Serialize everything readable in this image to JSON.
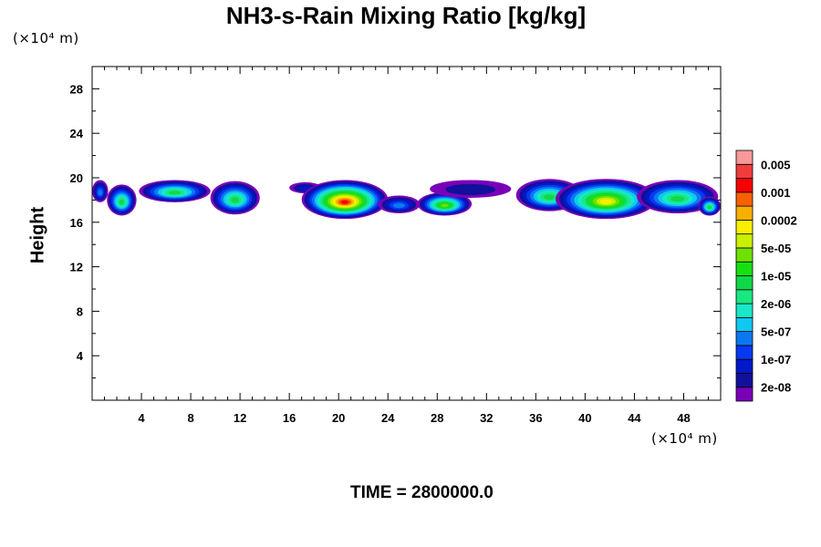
{
  "chart_data": {
    "type": "heatmap",
    "title": "NH3-s-Rain Mixing Ratio [kg/kg]",
    "ylabel": "Height",
    "xlabel": "",
    "x_unit": "(×10⁴ m)",
    "y_unit": "(×10⁴ m)",
    "footer": "TIME = 2800000.0",
    "xlim": [
      0,
      51
    ],
    "ylim": [
      0,
      30
    ],
    "x_ticks": [
      4,
      8,
      12,
      16,
      20,
      24,
      28,
      32,
      36,
      40,
      44,
      48
    ],
    "x_tick_labels": [
      "4",
      "8",
      "12",
      "16",
      "20",
      "24",
      "28",
      "32",
      "36",
      "40",
      "44",
      "48"
    ],
    "y_ticks": [
      4,
      8,
      12,
      16,
      20,
      24,
      28
    ],
    "y_tick_labels": [
      "4",
      "8",
      "12",
      "16",
      "20",
      "24",
      "28"
    ],
    "grid": false,
    "legend_position": "right",
    "colorbar": {
      "colors": [
        "#7a00b8",
        "#10109a",
        "#0018c8",
        "#0838f0",
        "#0c78f0",
        "#10c8f0",
        "#18e8c8",
        "#18e880",
        "#10d848",
        "#18e010",
        "#70e000",
        "#c8f000",
        "#f8f000",
        "#f8b000",
        "#f86000",
        "#f80000",
        "#f03c3c",
        "#f89898"
      ],
      "labels": [
        "2e-08",
        "1e-07",
        "5e-07",
        "2e-06",
        "1e-05",
        "5e-05",
        "0.0002",
        "0.001",
        "0.005"
      ]
    },
    "clouds": [
      {
        "x0": 0.0,
        "x1": 1.3,
        "y0": 17.8,
        "y1": 19.8,
        "peak": 4
      },
      {
        "x0": 1.2,
        "x1": 3.6,
        "y0": 16.6,
        "y1": 19.4,
        "peak": 8
      },
      {
        "x0": 3.8,
        "x1": 9.6,
        "y0": 17.8,
        "y1": 19.8,
        "peak": 8
      },
      {
        "x0": 9.6,
        "x1": 13.6,
        "y0": 16.7,
        "y1": 19.7,
        "peak": 8
      },
      {
        "x0": 16.0,
        "x1": 18.6,
        "y0": 18.6,
        "y1": 19.6,
        "peak": 2
      },
      {
        "x0": 17.0,
        "x1": 24.0,
        "y0": 16.3,
        "y1": 19.8,
        "peak": 15
      },
      {
        "x0": 23.2,
        "x1": 26.6,
        "y0": 16.8,
        "y1": 18.4,
        "peak": 4
      },
      {
        "x0": 26.4,
        "x1": 30.8,
        "y0": 16.6,
        "y1": 18.7,
        "peak": 10
      },
      {
        "x0": 27.4,
        "x1": 34.0,
        "y0": 18.2,
        "y1": 19.8,
        "peak": 1
      },
      {
        "x0": 34.4,
        "x1": 39.8,
        "y0": 17.0,
        "y1": 19.9,
        "peak": 8
      },
      {
        "x0": 37.6,
        "x1": 45.8,
        "y0": 16.3,
        "y1": 19.9,
        "peak": 12
      },
      {
        "x0": 44.2,
        "x1": 50.8,
        "y0": 16.8,
        "y1": 19.8,
        "peak": 8
      },
      {
        "x0": 49.2,
        "x1": 51.0,
        "y0": 16.6,
        "y1": 18.3,
        "peak": 8
      }
    ]
  }
}
